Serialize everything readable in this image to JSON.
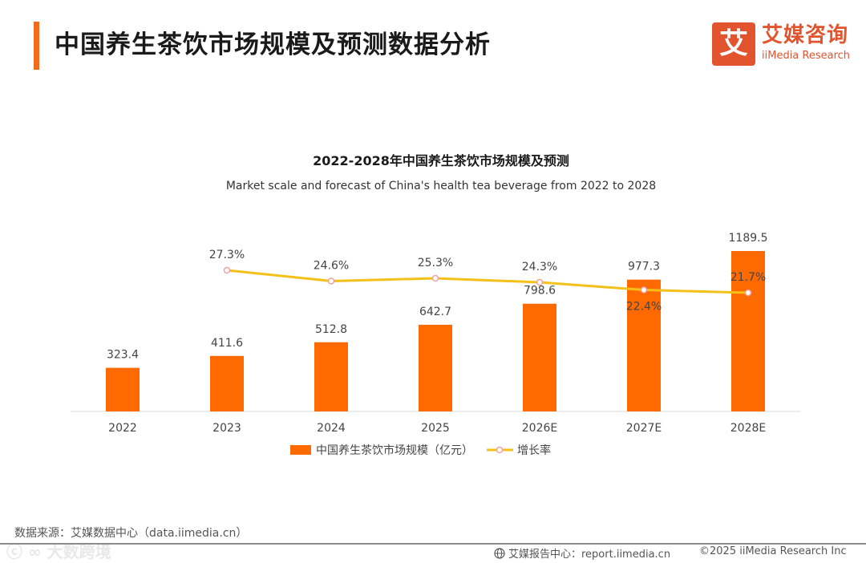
{
  "page": {
    "title": "中国养生茶饮市场规模及预测数据分析"
  },
  "logo": {
    "mark": "艾",
    "cn": "艾媒咨询",
    "en": "iiMedia Research",
    "color": "#e2542d"
  },
  "chart_data": {
    "type": "bar",
    "title": "2022-2028年中国养生茶饮市场规模及预测",
    "subtitle": "Market scale and forecast of China's health tea beverage from 2022 to 2028",
    "categories": [
      "2022",
      "2023",
      "2024",
      "2025",
      "2026E",
      "2027E",
      "2028E"
    ],
    "series": [
      {
        "name": "中国养生茶饮市场规模（亿元）",
        "type": "bar",
        "color": "#ff6a00",
        "values": [
          323.4,
          411.6,
          512.8,
          642.7,
          798.6,
          977.3,
          1189.5
        ],
        "labels": [
          "323.4",
          "411.6",
          "512.8",
          "642.7",
          "798.6",
          "977.3",
          "1189.5"
        ]
      },
      {
        "name": "增长率",
        "type": "line",
        "color": "#f5c018",
        "values": [
          null,
          27.3,
          24.6,
          25.3,
          24.3,
          22.4,
          21.7
        ],
        "labels": [
          "",
          "27.3%",
          "24.6%",
          "25.3%",
          "24.3%",
          "22.4%",
          "21.7%"
        ]
      }
    ],
    "legend_position": "bottom",
    "grid": false
  },
  "source": "数据来源：艾媒数据中心（data.iimedia.cn）",
  "footer": {
    "left": "艾媒报告中心：report.iimedia.cn",
    "right": "©2025  iiMedia Research  Inc"
  }
}
